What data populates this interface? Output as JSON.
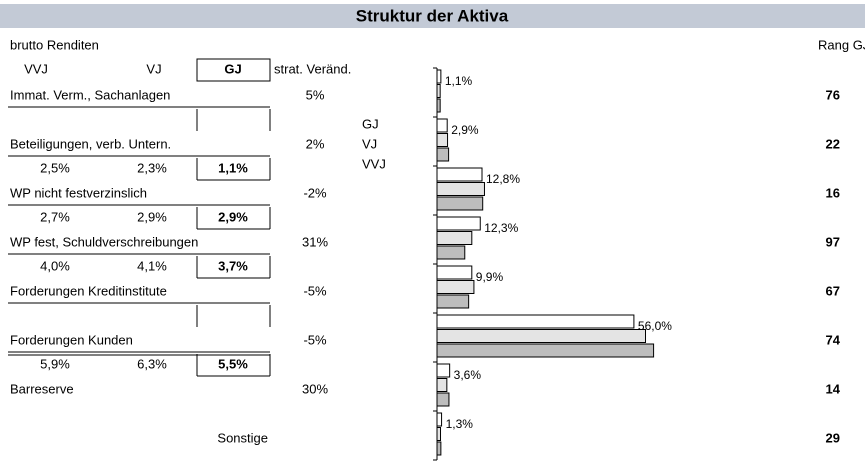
{
  "title": "Struktur der Aktiva",
  "subtitle": "brutto Renditen",
  "rank_header": "Rang GJ",
  "table": {
    "columns": [
      "VVJ",
      "VJ",
      "GJ",
      "strat. Veränd."
    ],
    "rows": [
      {
        "label": "Immat. Verm., Sachanlagen",
        "strat": "5%",
        "rank": "76",
        "renditen": null
      },
      {
        "label": "Beteiligungen, verb. Untern.",
        "strat": "2%",
        "rank": "22",
        "renditen": [
          "2,5%",
          "2,3%",
          "1,1%"
        ]
      },
      {
        "label": "WP nicht festverzinslich",
        "strat": "-2%",
        "rank": "16",
        "renditen": [
          "2,7%",
          "2,9%",
          "2,9%"
        ]
      },
      {
        "label": "WP fest, Schuldverschreibungen",
        "strat": "31%",
        "rank": "97",
        "renditen": [
          "4,0%",
          "4,1%",
          "3,7%"
        ]
      },
      {
        "label": "Forderungen Kreditinstitute",
        "strat": "-5%",
        "rank": "67",
        "renditen": null
      },
      {
        "label": "Forderungen Kunden",
        "strat": "-5%",
        "rank": "74",
        "renditen": [
          "5,9%",
          "6,3%",
          "5,5%"
        ]
      },
      {
        "label": "Barreserve",
        "strat": "30%",
        "rank": "14"
      },
      {
        "label": "Sonstige",
        "rank": "29"
      }
    ]
  },
  "chart_data": {
    "type": "bar",
    "orientation": "horizontal",
    "xlim": [
      0,
      62
    ],
    "series": [
      {
        "name": "GJ",
        "color": "#ffffff",
        "values": [
          1.1,
          2.9,
          12.8,
          12.3,
          9.9,
          56.0,
          3.6,
          1.3
        ],
        "value_labels": [
          "1,1%",
          "2,9%",
          "12,8%",
          "12,3%",
          "9,9%",
          "56,0%",
          "3,6%",
          "1,3%"
        ]
      },
      {
        "name": "VJ",
        "color": "#e4e4e4",
        "values": [
          0.9,
          3.0,
          13.5,
          9.9,
          10.5,
          59.3,
          2.8,
          1.0
        ]
      },
      {
        "name": "VVJ",
        "color": "#bdbdbd",
        "values": [
          0.9,
          3.3,
          13.0,
          7.9,
          9.0,
          61.6,
          3.4,
          1.1
        ]
      }
    ]
  }
}
